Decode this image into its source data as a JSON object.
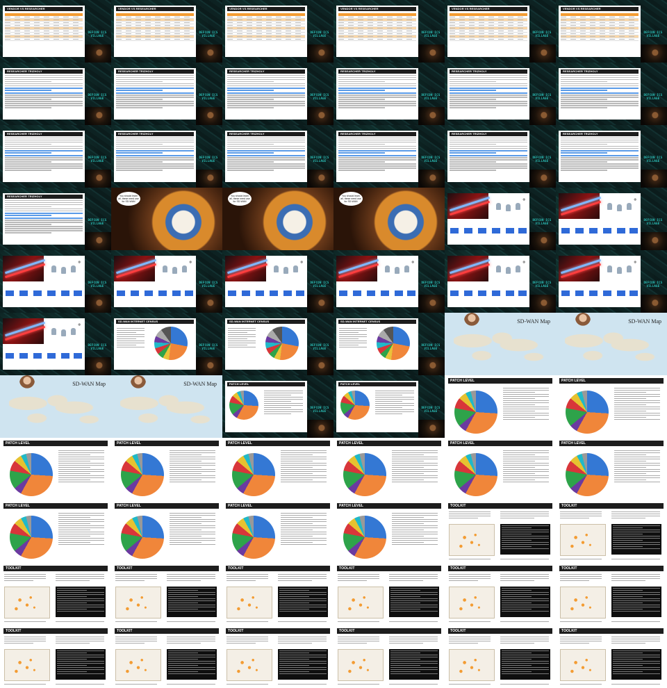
{
  "logo_text": "DEFCON ICS VILLAGE",
  "titles": {
    "vendor": "VENDOR VS RESEARCHER",
    "trizholy": "RESEARCHER TRIZHOLY",
    "census": "SD-WAN INTERNET CENSUS",
    "map": "SD-WAN Map",
    "patch": "PATCH LEVEL",
    "toolkit": "TOOLKIT"
  },
  "bubble_text": "You should learn all, these need use for SD-WAN",
  "cells": [
    "vendor",
    "vendor",
    "vendor",
    "vendor",
    "vendor",
    "vendor",
    "trizholy",
    "trizholy",
    "trizholy",
    "trizholy",
    "trizholy",
    "trizholy",
    "trizholy",
    "trizholy",
    "trizholy",
    "trizholy",
    "trizholy",
    "trizholy",
    "trizholy",
    "clone",
    "clone",
    "clone",
    "sw",
    "sw",
    "sw",
    "sw",
    "sw",
    "sw",
    "sw",
    "sw",
    "sw",
    "census",
    "census",
    "census",
    "map",
    "map",
    "map",
    "map",
    "patchsmall",
    "patchsmall",
    "patch",
    "patch",
    "patch",
    "patch",
    "patch",
    "patch",
    "patch",
    "patch",
    "patch",
    "patch",
    "patch",
    "patch",
    "toolkit",
    "toolkit",
    "toolkit",
    "toolkit",
    "toolkit",
    "toolkit",
    "toolkit",
    "toolkit",
    "toolkit",
    "toolkit",
    "toolkit",
    "toolkit",
    "toolkit",
    "toolkit"
  ]
}
